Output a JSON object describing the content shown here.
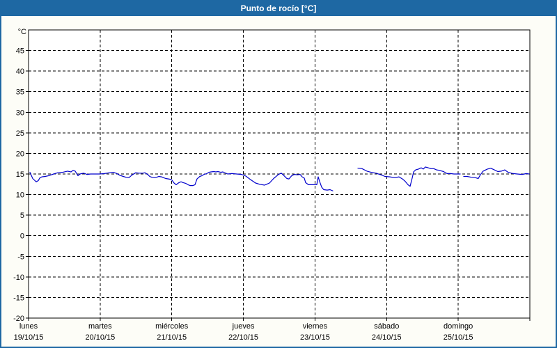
{
  "window": {
    "title": "Punto de rocío [°C]"
  },
  "colors": {
    "titlebar_bg": "#1e68a3",
    "titlebar_text": "#ffffff",
    "window_bg": "#fdfdf7",
    "plot_bg": "#ffffff",
    "grid": "#000000",
    "series_line": "#0000cc"
  },
  "chart_data": {
    "type": "line",
    "title": "Punto de rocío [°C]",
    "xlabel": "",
    "ylabel": "°C",
    "y_unit": "°C",
    "ylim": [
      -20,
      50
    ],
    "y_ticks": [
      45,
      40,
      35,
      30,
      25,
      20,
      15,
      10,
      5,
      0,
      -5,
      -10,
      -15,
      -20
    ],
    "grid": "dashed",
    "legend": "none",
    "x_days": [
      {
        "name": "lunes",
        "date": "19/10/15"
      },
      {
        "name": "martes",
        "date": "20/10/15"
      },
      {
        "name": "miércoles",
        "date": "21/10/15"
      },
      {
        "name": "jueves",
        "date": "22/10/15"
      },
      {
        "name": "viernes",
        "date": "23/10/15"
      },
      {
        "name": "sábado",
        "date": "24/10/15"
      },
      {
        "name": "domingo",
        "date": "25/10/15"
      }
    ],
    "x_range_days": 7,
    "series": [
      {
        "name": "Punto de rocío",
        "color": "#0000cc",
        "units": "°C",
        "segments": [
          [
            [
              0.019,
              15.4
            ],
            [
              0.058,
              13.9
            ],
            [
              0.107,
              13.1
            ],
            [
              0.136,
              13.4
            ],
            [
              0.156,
              14.0
            ],
            [
              0.185,
              14.3
            ],
            [
              0.233,
              14.4
            ],
            [
              0.282,
              14.6
            ],
            [
              0.35,
              15.0
            ],
            [
              0.408,
              15.3
            ],
            [
              0.476,
              15.4
            ],
            [
              0.544,
              15.7
            ],
            [
              0.593,
              15.5
            ],
            [
              0.622,
              15.9
            ],
            [
              0.651,
              15.7
            ],
            [
              0.69,
              14.6
            ],
            [
              0.719,
              15.0
            ],
            [
              0.768,
              15.2
            ],
            [
              0.817,
              14.9
            ],
            [
              0.865,
              15.0
            ],
            [
              0.933,
              15.0
            ],
            [
              0.992,
              15.0
            ],
            [
              1.06,
              15.1
            ],
            [
              1.128,
              15.3
            ],
            [
              1.186,
              15.4
            ],
            [
              1.235,
              15.1
            ],
            [
              1.274,
              14.7
            ],
            [
              1.322,
              14.4
            ],
            [
              1.361,
              14.2
            ],
            [
              1.4,
              14.1
            ],
            [
              1.449,
              14.8
            ],
            [
              1.497,
              15.3
            ],
            [
              1.546,
              15.2
            ],
            [
              1.595,
              15.2
            ],
            [
              1.624,
              15.3
            ],
            [
              1.663,
              14.9
            ],
            [
              1.692,
              14.4
            ],
            [
              1.721,
              14.2
            ],
            [
              1.76,
              14.1
            ],
            [
              1.789,
              14.2
            ],
            [
              1.818,
              14.4
            ],
            [
              1.857,
              14.3
            ],
            [
              1.886,
              14.1
            ],
            [
              1.915,
              13.9
            ],
            [
              1.954,
              13.8
            ],
            [
              1.983,
              13.7
            ],
            [
              2.003,
              13.5
            ],
            [
              2.032,
              12.8
            ],
            [
              2.061,
              12.4
            ],
            [
              2.1,
              12.9
            ],
            [
              2.129,
              13.1
            ],
            [
              2.159,
              12.9
            ],
            [
              2.197,
              12.7
            ],
            [
              2.227,
              12.4
            ],
            [
              2.256,
              12.2
            ],
            [
              2.295,
              12.2
            ],
            [
              2.324,
              12.4
            ],
            [
              2.353,
              13.8
            ],
            [
              2.392,
              14.4
            ],
            [
              2.421,
              14.6
            ],
            [
              2.45,
              14.9
            ],
            [
              2.489,
              15.1
            ],
            [
              2.518,
              15.4
            ],
            [
              2.547,
              15.5
            ],
            [
              2.586,
              15.6
            ],
            [
              2.615,
              15.5
            ],
            [
              2.645,
              15.6
            ],
            [
              2.683,
              15.4
            ],
            [
              2.713,
              15.5
            ],
            [
              2.781,
              15.0
            ],
            [
              2.839,
              15.1
            ],
            [
              2.907,
              15.0
            ],
            [
              2.975,
              14.9
            ],
            [
              3.034,
              14.5
            ],
            [
              3.102,
              13.6
            ],
            [
              3.17,
              12.8
            ],
            [
              3.228,
              12.5
            ],
            [
              3.296,
              12.3
            ],
            [
              3.364,
              12.8
            ],
            [
              3.422,
              13.9
            ],
            [
              3.49,
              14.9
            ],
            [
              3.529,
              15.2
            ],
            [
              3.568,
              14.6
            ],
            [
              3.607,
              13.9
            ],
            [
              3.636,
              13.8
            ],
            [
              3.675,
              14.6
            ],
            [
              3.714,
              14.9
            ],
            [
              3.753,
              14.8
            ],
            [
              3.792,
              14.9
            ],
            [
              3.821,
              14.3
            ],
            [
              3.85,
              14.0
            ],
            [
              3.869,
              12.9
            ],
            [
              3.908,
              12.4
            ],
            [
              3.957,
              12.4
            ],
            [
              3.996,
              12.4
            ],
            [
              4.025,
              12.4
            ],
            [
              4.044,
              14.3
            ],
            [
              4.064,
              13.2
            ],
            [
              4.093,
              11.8
            ],
            [
              4.122,
              11.2
            ],
            [
              4.171,
              11.1
            ],
            [
              4.21,
              11.2
            ],
            [
              4.249,
              10.9
            ]
          ],
          [
            [
              4.599,
              16.4
            ],
            [
              4.657,
              16.3
            ],
            [
              4.725,
              15.7
            ],
            [
              4.784,
              15.4
            ],
            [
              4.852,
              15.2
            ],
            [
              4.92,
              14.8
            ],
            [
              4.978,
              14.4
            ],
            [
              5.046,
              14.3
            ],
            [
              5.114,
              14.1
            ],
            [
              5.172,
              14.3
            ],
            [
              5.221,
              13.8
            ],
            [
              5.26,
              13.2
            ],
            [
              5.299,
              12.4
            ],
            [
              5.328,
              12.0
            ],
            [
              5.357,
              14.0
            ],
            [
              5.376,
              15.5
            ],
            [
              5.406,
              16.0
            ],
            [
              5.444,
              16.2
            ],
            [
              5.483,
              16.5
            ],
            [
              5.512,
              16.2
            ],
            [
              5.542,
              16.7
            ],
            [
              5.58,
              16.5
            ],
            [
              5.619,
              16.3
            ],
            [
              5.658,
              16.3
            ],
            [
              5.697,
              16.0
            ],
            [
              5.736,
              15.9
            ],
            [
              5.794,
              15.6
            ],
            [
              5.843,
              15.1
            ],
            [
              5.891,
              15.1
            ],
            [
              5.94,
              15.0
            ],
            [
              5.989,
              15.0
            ],
            [
              6.028,
              15.0
            ]
          ],
          [
            [
              6.076,
              14.4
            ],
            [
              6.125,
              14.4
            ],
            [
              6.183,
              14.2
            ],
            [
              6.241,
              14.1
            ],
            [
              6.28,
              13.9
            ],
            [
              6.309,
              14.8
            ],
            [
              6.348,
              15.7
            ],
            [
              6.407,
              16.2
            ],
            [
              6.455,
              16.4
            ],
            [
              6.504,
              16.0
            ],
            [
              6.553,
              15.6
            ],
            [
              6.601,
              15.7
            ],
            [
              6.65,
              16.0
            ],
            [
              6.698,
              15.4
            ],
            [
              6.766,
              15.1
            ],
            [
              6.825,
              15.0
            ],
            [
              6.893,
              14.9
            ],
            [
              6.951,
              15.1
            ],
            [
              6.99,
              15.0
            ]
          ]
        ]
      }
    ]
  }
}
